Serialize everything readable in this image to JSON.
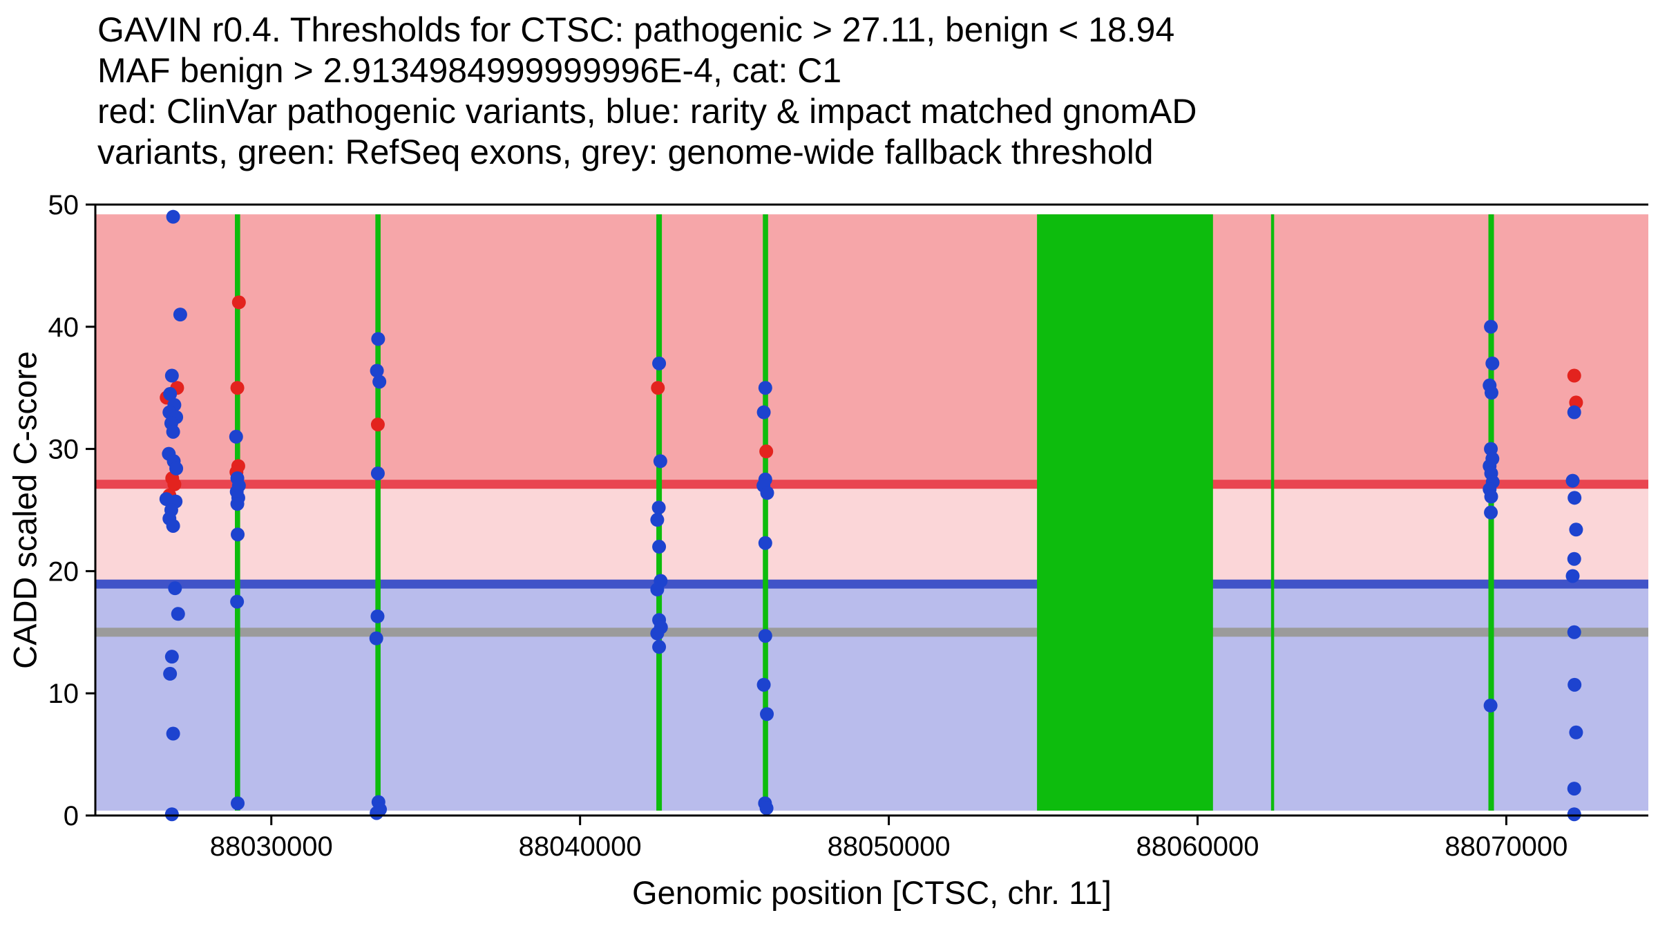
{
  "header": {
    "lines": [
      "GAVIN r0.4. Thresholds for CTSC: pathogenic > 27.11, benign < 18.94",
      "MAF benign > 2.9134984999999996E-4, cat: C1",
      "red: ClinVar pathogenic variants, blue: rarity & impact matched gnomAD",
      "variants, green: RefSeq exons, grey: genome-wide fallback threshold"
    ]
  },
  "chart_data": {
    "type": "scatter",
    "title": "GAVIN r0.4. Thresholds for CTSC: pathogenic > 27.11, benign < 18.94 MAF benign > 2.9134984999999996E-4, cat: C1",
    "xlabel": "Genomic position [CTSC, chr. 11]",
    "ylabel": "CADD scaled C-score",
    "xlim": [
      88024300,
      88074600
    ],
    "ylim": [
      0,
      50
    ],
    "x_ticks": [
      88030000,
      88040000,
      88050000,
      88060000,
      88070000
    ],
    "y_ticks": [
      0,
      10,
      20,
      30,
      40,
      50
    ],
    "grid": false,
    "legend": "none",
    "thresholds": {
      "pathogenic": 27.11,
      "benign": 18.94,
      "maf_benign": "2.9134984999999996E-4",
      "category": "C1",
      "genome_wide_fallback": 15
    },
    "band_ymin": 0.4,
    "band_ymax": 49.2,
    "bands": [
      {
        "name": "pathogenic-region",
        "from": 27.11,
        "to": 49.2,
        "color": "#f6a6a9"
      },
      {
        "name": "intermediate-region",
        "from": 18.94,
        "to": 27.11,
        "color": "#fbd6d8"
      },
      {
        "name": "benign-region",
        "from": 0.4,
        "to": 18.94,
        "color": "#b9bcec"
      }
    ],
    "threshold_lines": [
      {
        "name": "pathogenic-threshold",
        "y": 27.11,
        "color": "#e94550"
      },
      {
        "name": "benign-threshold",
        "y": 18.94,
        "color": "#4053c8"
      },
      {
        "name": "genome-wide-fallback-threshold",
        "y": 15,
        "color": "#9b9b9b"
      }
    ],
    "exon_color": "#0dbc0d",
    "exons": [
      [
        88028820,
        88028990
      ],
      [
        88033370,
        88033540
      ],
      [
        88042470,
        88042650
      ],
      [
        88045920,
        88046090
      ],
      [
        88054800,
        88060500
      ],
      [
        88062380,
        88062480
      ],
      [
        88069420,
        88069600
      ]
    ],
    "series": [
      {
        "name": "ClinVar pathogenic variants",
        "color": "#e3231e",
        "points": [
          [
            88026950,
            35.0
          ],
          [
            88026610,
            34.2
          ],
          [
            88026790,
            27.6
          ],
          [
            88026860,
            27.1
          ],
          [
            88026700,
            26.2
          ],
          [
            88028950,
            42.0
          ],
          [
            88028900,
            35.0
          ],
          [
            88028930,
            28.6
          ],
          [
            88028870,
            28.1
          ],
          [
            88033450,
            32.0
          ],
          [
            88042520,
            35.0
          ],
          [
            88046030,
            29.8
          ],
          [
            88072200,
            36.0
          ],
          [
            88072260,
            33.8
          ]
        ]
      },
      {
        "name": "rarity & impact matched gnomAD variants",
        "color": "#1d43cf",
        "points": [
          [
            88026820,
            49.0
          ],
          [
            88027050,
            41.0
          ],
          [
            88026780,
            36.0
          ],
          [
            88026720,
            34.5
          ],
          [
            88026860,
            33.6
          ],
          [
            88026700,
            33.0
          ],
          [
            88026920,
            32.6
          ],
          [
            88026760,
            32.1
          ],
          [
            88026820,
            31.4
          ],
          [
            88026680,
            29.6
          ],
          [
            88026840,
            29.0
          ],
          [
            88026920,
            28.4
          ],
          [
            88026600,
            25.9
          ],
          [
            88026900,
            25.7
          ],
          [
            88026760,
            25.0
          ],
          [
            88026700,
            24.3
          ],
          [
            88026820,
            23.7
          ],
          [
            88026880,
            18.6
          ],
          [
            88026980,
            16.5
          ],
          [
            88026780,
            13.0
          ],
          [
            88026720,
            11.6
          ],
          [
            88026820,
            6.7
          ],
          [
            88026780,
            0.1
          ],
          [
            88028860,
            31.0
          ],
          [
            88028900,
            27.6
          ],
          [
            88028950,
            27.0
          ],
          [
            88028880,
            26.5
          ],
          [
            88028930,
            26.0
          ],
          [
            88028900,
            25.5
          ],
          [
            88028910,
            23.0
          ],
          [
            88028890,
            17.5
          ],
          [
            88028910,
            1.0
          ],
          [
            88033460,
            39.0
          ],
          [
            88033420,
            36.4
          ],
          [
            88033500,
            35.5
          ],
          [
            88033450,
            28.0
          ],
          [
            88033440,
            16.3
          ],
          [
            88033400,
            14.5
          ],
          [
            88033470,
            1.1
          ],
          [
            88033520,
            0.5
          ],
          [
            88033410,
            0.2
          ],
          [
            88042560,
            37.0
          ],
          [
            88042600,
            29.0
          ],
          [
            88042550,
            25.2
          ],
          [
            88042500,
            24.2
          ],
          [
            88042560,
            22.0
          ],
          [
            88042610,
            19.2
          ],
          [
            88042500,
            18.5
          ],
          [
            88042560,
            16.0
          ],
          [
            88042620,
            15.4
          ],
          [
            88042500,
            14.9
          ],
          [
            88042560,
            13.8
          ],
          [
            88046000,
            35.0
          ],
          [
            88045950,
            33.0
          ],
          [
            88046000,
            27.5
          ],
          [
            88045940,
            27.0
          ],
          [
            88046060,
            26.4
          ],
          [
            88046000,
            22.3
          ],
          [
            88046000,
            14.7
          ],
          [
            88045950,
            10.7
          ],
          [
            88046050,
            8.3
          ],
          [
            88045990,
            1.0
          ],
          [
            88046040,
            0.6
          ],
          [
            88069500,
            40.0
          ],
          [
            88069550,
            37.0
          ],
          [
            88069460,
            35.2
          ],
          [
            88069520,
            34.6
          ],
          [
            88069500,
            30.0
          ],
          [
            88069550,
            29.2
          ],
          [
            88069460,
            28.6
          ],
          [
            88069510,
            28.0
          ],
          [
            88069560,
            27.3
          ],
          [
            88069460,
            26.7
          ],
          [
            88069510,
            26.1
          ],
          [
            88069500,
            24.8
          ],
          [
            88069490,
            9.0
          ],
          [
            88072200,
            33.0
          ],
          [
            88072150,
            27.4
          ],
          [
            88072210,
            26.0
          ],
          [
            88072260,
            23.4
          ],
          [
            88072200,
            21.0
          ],
          [
            88072150,
            19.6
          ],
          [
            88072200,
            15.0
          ],
          [
            88072210,
            10.7
          ],
          [
            88072260,
            6.8
          ],
          [
            88072200,
            2.2
          ],
          [
            88072200,
            0.1
          ]
        ]
      }
    ]
  }
}
